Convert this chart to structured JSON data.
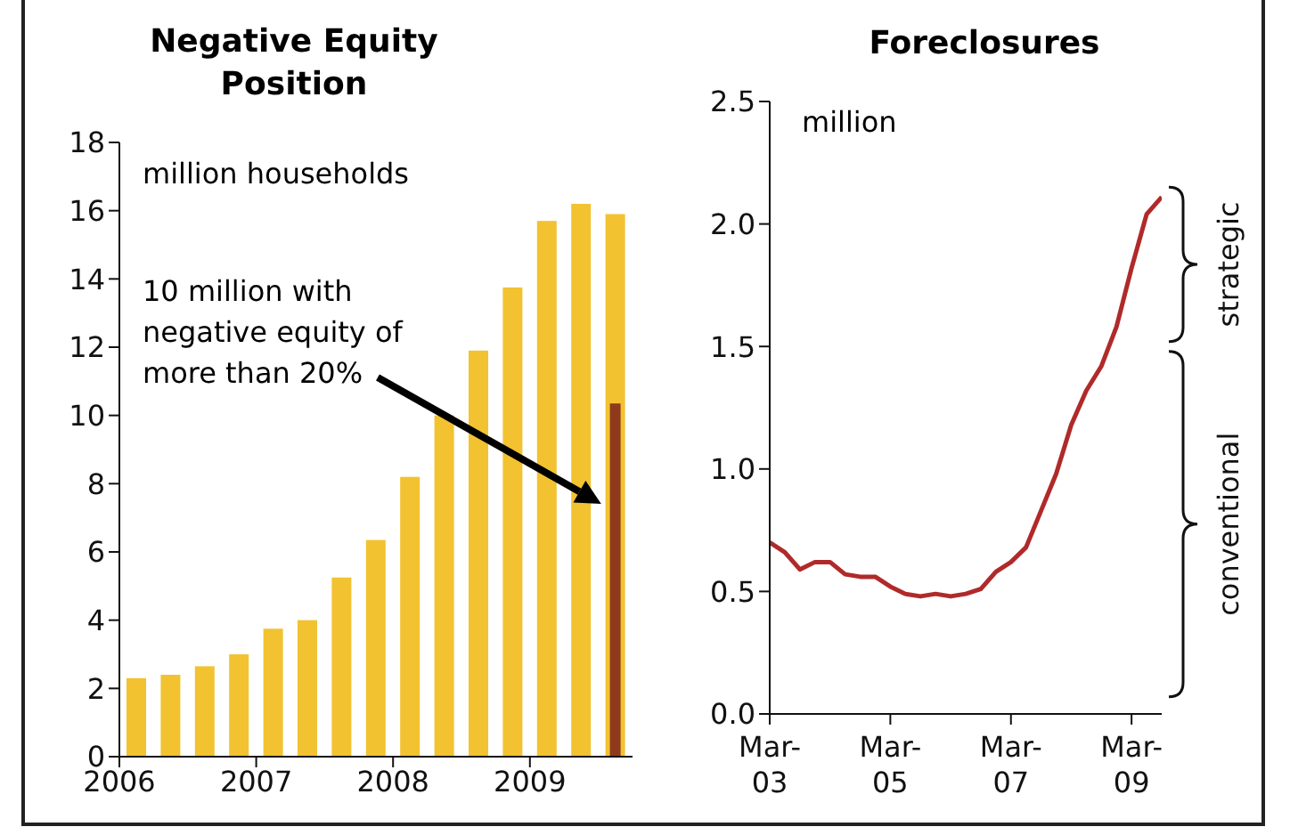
{
  "chart_data": [
    {
      "type": "bar",
      "title": "Negative Equity Position",
      "ylabel": "million households",
      "x": [
        2006.125,
        2006.375,
        2006.625,
        2006.875,
        2007.125,
        2007.375,
        2007.625,
        2007.875,
        2008.125,
        2008.375,
        2008.625,
        2008.875,
        2009.125,
        2009.375,
        2009.625
      ],
      "series": [
        {
          "color": "#f2c231",
          "values": [
            2.3,
            2.4,
            2.65,
            3.0,
            3.75,
            4.0,
            5.25,
            6.35,
            8.2,
            10.0,
            11.9,
            13.75,
            15.7,
            16.2,
            15.9
          ]
        },
        {
          "color": "#8e3a1c",
          "values": [
            null,
            null,
            null,
            null,
            null,
            null,
            null,
            null,
            null,
            null,
            null,
            null,
            null,
            null,
            10.35
          ]
        }
      ],
      "xlim": [
        2006,
        2009.75
      ],
      "xticks": [
        2006,
        2007,
        2008,
        2009
      ],
      "ylim": [
        0,
        18
      ],
      "yticks": [
        0,
        2,
        4,
        6,
        8,
        10,
        12,
        14,
        16,
        18
      ],
      "annotations": [
        "10 million with negative equity of more than 20%"
      ]
    },
    {
      "type": "line",
      "title": "Foreclosures",
      "ylabel": "million",
      "x": [
        "2003-03",
        "2003-06",
        "2003-09",
        "2003-12",
        "2004-03",
        "2004-06",
        "2004-09",
        "2004-12",
        "2005-03",
        "2005-06",
        "2005-09",
        "2005-12",
        "2006-03",
        "2006-06",
        "2006-09",
        "2006-12",
        "2007-03",
        "2007-06",
        "2007-09",
        "2007-12",
        "2008-03",
        "2008-06",
        "2008-09",
        "2008-12",
        "2009-03",
        "2009-06",
        "2009-09"
      ],
      "series": [
        {
          "color": "#b02a2a",
          "values": [
            0.7,
            0.66,
            0.59,
            0.62,
            0.62,
            0.57,
            0.56,
            0.56,
            0.52,
            0.49,
            0.48,
            0.49,
            0.48,
            0.49,
            0.51,
            0.58,
            0.62,
            0.68,
            0.83,
            0.98,
            1.18,
            1.32,
            1.42,
            1.58,
            1.82,
            2.04,
            2.11
          ]
        }
      ],
      "xlim": [
        "2003-03",
        "2009-09"
      ],
      "xticks": [
        {
          "value": "2003-03",
          "label": "Mar-03"
        },
        {
          "value": "2005-03",
          "label": "Mar-05"
        },
        {
          "value": "2007-03",
          "label": "Mar-07"
        },
        {
          "value": "2009-03",
          "label": "Mar-09"
        }
      ],
      "ylim": [
        0,
        2.5
      ],
      "yticks": [
        {
          "value": 0,
          "label": "0.0"
        },
        0.5,
        {
          "value": 1,
          "label": "1.0"
        },
        1.5,
        {
          "value": 2,
          "label": "2.0"
        },
        2.5
      ],
      "marker": "none",
      "annotations": [
        "strategic",
        "conventional"
      ]
    }
  ]
}
